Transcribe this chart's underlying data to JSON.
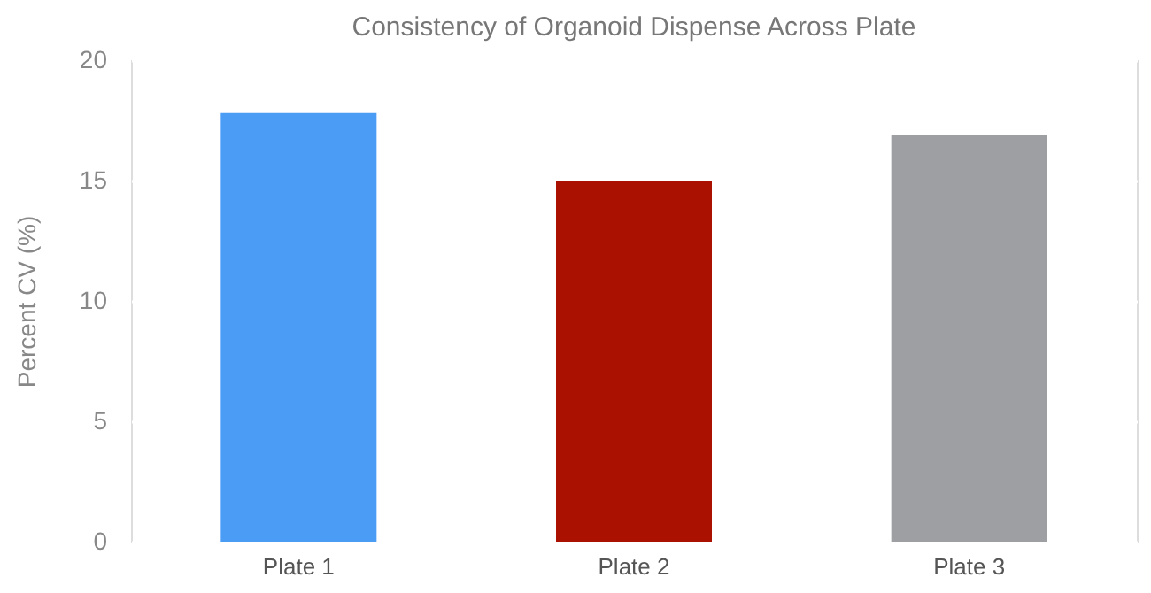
{
  "chart_data": {
    "type": "bar",
    "title": "Consistency of Organoid Dispense Across Plate",
    "ylabel": "Percent CV (%)",
    "categories": [
      "Plate 1",
      "Plate 2",
      "Plate 3"
    ],
    "values": [
      17.8,
      15.0,
      16.9
    ],
    "colors": [
      "#4a9cf5",
      "#ab1100",
      "#9d9fa2"
    ],
    "ylim": [
      0,
      20
    ],
    "yticks": [
      0,
      5,
      10,
      15,
      20
    ],
    "grid": "y"
  }
}
